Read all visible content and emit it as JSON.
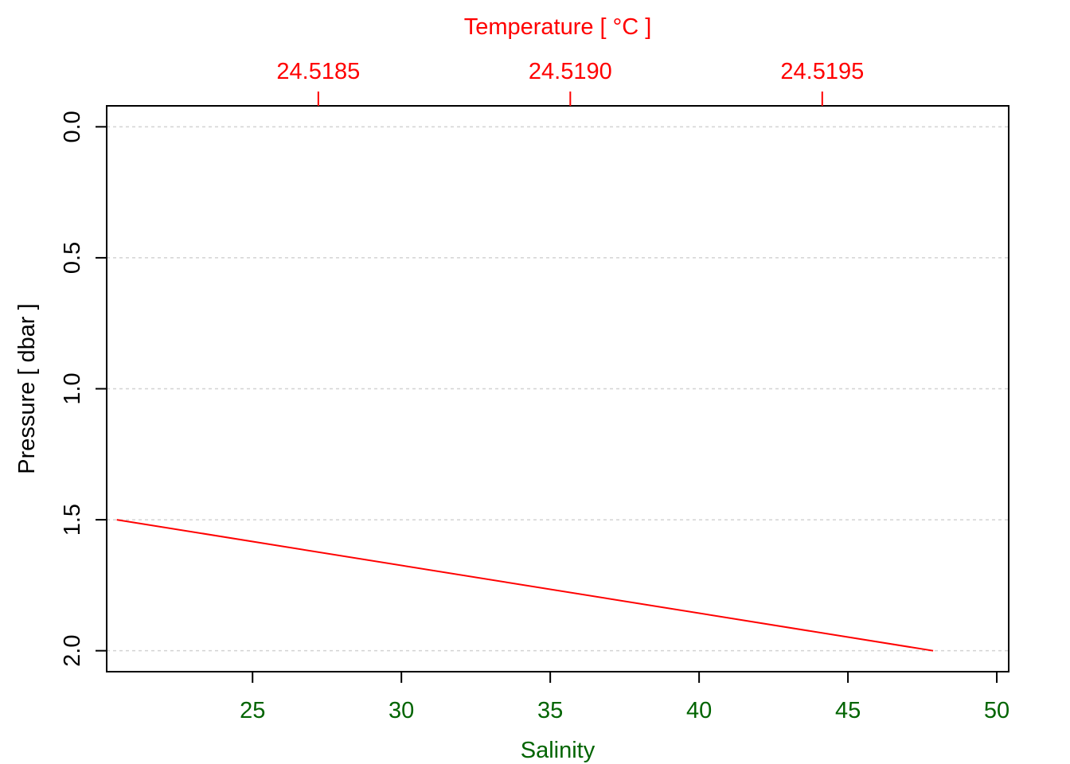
{
  "chart_data": {
    "type": "line",
    "title": "",
    "top_axis": {
      "label": "Temperature [ °C ]",
      "ticks": [
        24.5185,
        24.519,
        24.5195
      ],
      "tick_labels": [
        "24.5185",
        "24.5190",
        "24.5195"
      ],
      "range": [
        24.51808,
        24.51987
      ],
      "color": "#ff0000"
    },
    "bottom_axis": {
      "label": "Salinity",
      "ticks": [
        25,
        30,
        35,
        40,
        45,
        50
      ],
      "tick_labels": [
        "25",
        "30",
        "35",
        "40",
        "45",
        "50"
      ],
      "range": [
        20.1,
        50.4
      ],
      "color": "#006400"
    },
    "left_axis": {
      "label": "Pressure [ dbar ]",
      "ticks": [
        0,
        0.5,
        1,
        1.5,
        2
      ],
      "tick_labels": [
        "0.0",
        "0.5",
        "1.0",
        "1.5",
        "2.0"
      ],
      "range": [
        -0.08,
        2.08
      ],
      "inverted": true,
      "color": "#000000"
    },
    "grid": true,
    "series": [
      {
        "color": "#ff0000",
        "axis": "top",
        "points": [
          {
            "temperature": 24.5181,
            "pressure": 1.5
          },
          {
            "temperature": 24.51972,
            "pressure": 2.0
          }
        ]
      }
    ]
  }
}
